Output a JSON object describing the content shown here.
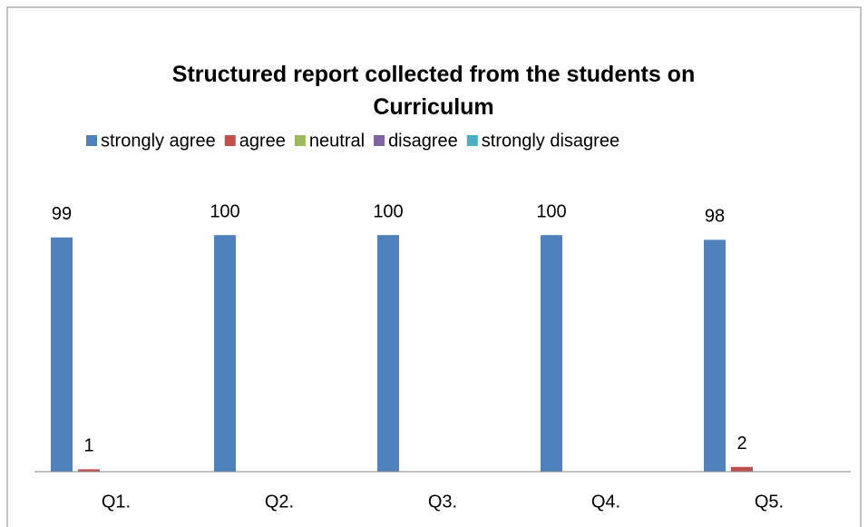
{
  "chart_data": {
    "type": "bar",
    "title": "Structured report collected from the students on Curriculum",
    "categories": [
      "Q1.",
      "Q2.",
      "Q3.",
      "Q4.",
      "Q5."
    ],
    "series": [
      {
        "name": "strongly agree",
        "color": "#4f81bd",
        "values": [
          99,
          100,
          100,
          100,
          98
        ]
      },
      {
        "name": "agree",
        "color": "#c0504d",
        "values": [
          1,
          0,
          0,
          0,
          2
        ]
      },
      {
        "name": "neutral",
        "color": "#9bbb59",
        "values": [
          0,
          0,
          0,
          0,
          0
        ]
      },
      {
        "name": "disagree",
        "color": "#8064a2",
        "values": [
          0,
          0,
          0,
          0,
          0
        ]
      },
      {
        "name": "strongly disagree",
        "color": "#4bacc6",
        "values": [
          0,
          0,
          0,
          0,
          0
        ]
      }
    ],
    "ylim": [
      0,
      120
    ],
    "legend": "top"
  }
}
